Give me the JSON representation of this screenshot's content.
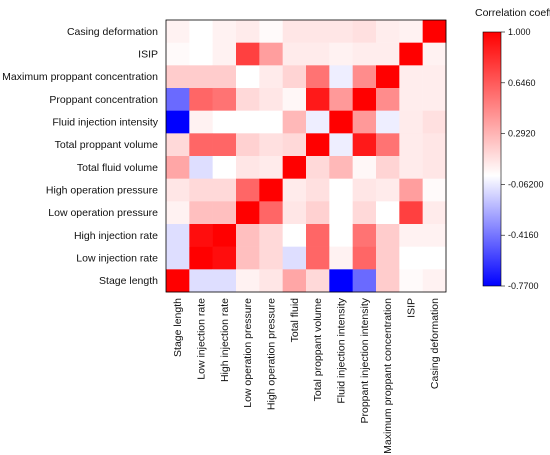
{
  "chart_data": {
    "type": "heatmap",
    "title": "",
    "colorbar": {
      "title": "Correlation coefficient",
      "range": [
        -0.77,
        1.0
      ],
      "ticks": [
        "1.000",
        "0.6460",
        "0.2920",
        "-0.06200",
        "-0.4160",
        "-0.7700"
      ],
      "tick_values": [
        1.0,
        0.646,
        0.292,
        -0.062,
        -0.416,
        -0.77
      ],
      "colors": {
        "low": "#0000ff",
        "mid": "#ffffff",
        "high": "#ff0000"
      }
    },
    "row_labels": [
      "Casing deformation",
      "ISIP",
      "Maximum proppant concentration",
      "Proppant concentration",
      "Fluid injection intensity",
      "Total proppant volume",
      "Total fluid volume",
      "High operation pressure",
      "Low operation pressure",
      "High injection rate",
      "Low injection rate",
      "Stage length"
    ],
    "column_labels": [
      "Stage length",
      "Low injection rate",
      "High injection rate",
      "Low operation pressure",
      "High operation pressure",
      "Total fluid",
      "Total proppant volume",
      "Fluid injection intensity",
      "Proppant injection intensity",
      "Maximum proppant concentration",
      "ISIP",
      "Casing deformation"
    ],
    "values": [
      [
        0.05,
        0.0,
        0.05,
        0.08,
        0.02,
        0.1,
        0.1,
        0.1,
        0.12,
        0.07,
        0.05,
        1.0
      ],
      [
        0.02,
        0.0,
        0.05,
        0.75,
        0.38,
        0.08,
        0.08,
        0.05,
        0.07,
        0.07,
        1.0,
        0.05
      ],
      [
        0.2,
        0.2,
        0.2,
        0.0,
        0.08,
        0.17,
        0.55,
        -0.05,
        0.45,
        1.0,
        0.07,
        0.07
      ],
      [
        -0.45,
        0.6,
        0.55,
        0.15,
        0.1,
        0.03,
        0.9,
        0.4,
        1.0,
        0.45,
        0.07,
        0.07
      ],
      [
        -0.77,
        0.05,
        0.0,
        0.0,
        0.0,
        0.28,
        -0.05,
        1.0,
        0.4,
        -0.05,
        0.08,
        0.12
      ],
      [
        0.15,
        0.6,
        0.6,
        0.18,
        0.12,
        0.15,
        1.0,
        -0.05,
        0.9,
        0.55,
        0.08,
        0.1
      ],
      [
        0.35,
        -0.1,
        0.0,
        0.1,
        0.08,
        1.0,
        0.15,
        0.28,
        0.03,
        0.17,
        0.08,
        0.1
      ],
      [
        0.1,
        0.15,
        0.15,
        0.6,
        1.0,
        0.08,
        0.12,
        0.0,
        0.1,
        0.08,
        0.38,
        0.02
      ],
      [
        0.05,
        0.25,
        0.25,
        1.0,
        0.6,
        0.1,
        0.18,
        0.0,
        0.15,
        0.0,
        0.75,
        0.08
      ],
      [
        -0.1,
        0.95,
        1.0,
        0.25,
        0.15,
        0.0,
        0.6,
        0.0,
        0.55,
        0.2,
        0.05,
        0.05
      ],
      [
        -0.1,
        1.0,
        0.95,
        0.25,
        0.15,
        -0.1,
        0.6,
        0.05,
        0.6,
        0.2,
        0.0,
        0.0
      ],
      [
        1.0,
        -0.1,
        -0.1,
        0.05,
        0.1,
        0.35,
        0.15,
        -0.77,
        -0.45,
        0.2,
        0.02,
        0.05
      ]
    ]
  }
}
